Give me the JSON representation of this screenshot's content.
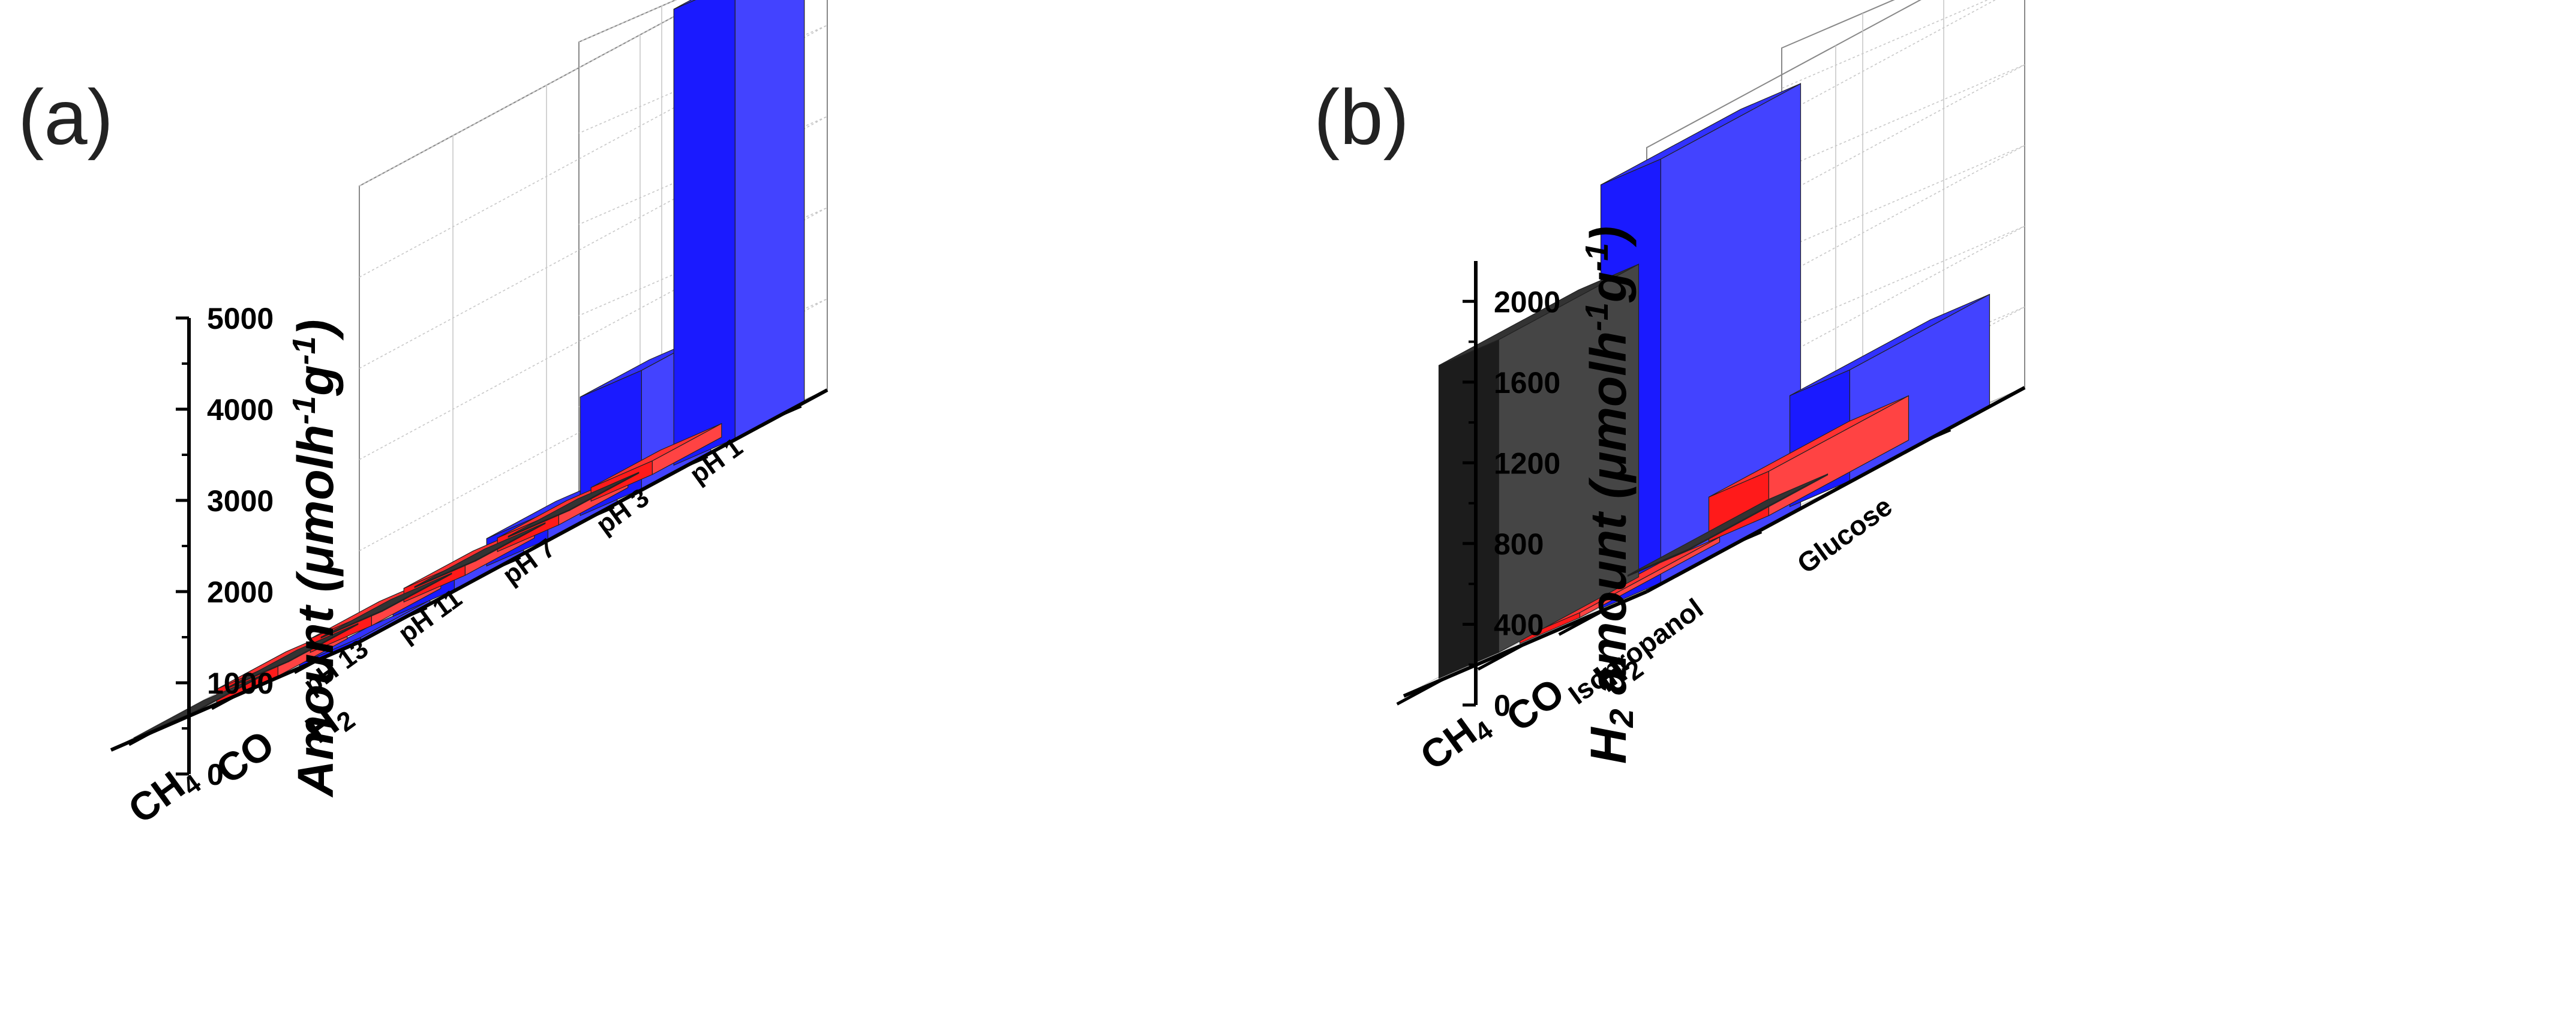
{
  "colors": {
    "H2": "#1a1aff",
    "CO": "#ff1a1a",
    "CH4": "#1c1c1c",
    "grid": "#c8c8c8",
    "axis": "#000000"
  },
  "chart_data": [
    {
      "panel": "(a)",
      "type": "bar3d",
      "ylabel": "Amount (μmolh⁻¹g⁻¹)",
      "ylabel_main": "Amount (",
      "ylabel_mu": "μ",
      "ylabel_unit1": "molh",
      "ylabel_exp1": "-1",
      "ylabel_unit2": "g",
      "ylabel_exp2": "-1",
      "ylabel_close": ")",
      "ylim": [
        0,
        5000
      ],
      "yticks": [
        0,
        1000,
        2000,
        3000,
        4000,
        5000
      ],
      "categories": [
        "pH 1",
        "pH 3",
        "pH 7",
        "pH 11",
        "pH 13"
      ],
      "products": [
        "CH4",
        "CO",
        "H2"
      ],
      "product_labels": {
        "CH4": {
          "main": "CH",
          "sub": "4"
        },
        "CO": {
          "main": "CO",
          "sub": ""
        },
        "H2": {
          "main": "H",
          "sub": "2"
        }
      },
      "series": [
        {
          "name": "CH4",
          "values": [
            10,
            10,
            10,
            10,
            10
          ]
        },
        {
          "name": "CO",
          "values": [
            150,
            150,
            150,
            150,
            150
          ]
        },
        {
          "name": "H2",
          "values": [
            5000,
            1300,
            300,
            180,
            30
          ]
        }
      ]
    },
    {
      "panel": "(b)",
      "type": "bar3d",
      "ylabel": "H2 amount (μmolh⁻¹g⁻¹)",
      "ylabel_main": "H",
      "ylabel_main_sub": "2",
      "ylabel_main_rest": " amount (",
      "ylabel_mu": "μ",
      "ylabel_unit1": "molh",
      "ylabel_exp1": "-1",
      "ylabel_unit2": "g",
      "ylabel_exp2": "-1",
      "ylabel_close": ")",
      "ylim": [
        0,
        2200
      ],
      "yticks": [
        0,
        400,
        800,
        1200,
        1600,
        2000
      ],
      "categories": [
        "Glucose",
        "Isopropanol"
      ],
      "products": [
        "CH4",
        "CO",
        "H2"
      ],
      "product_labels": {
        "CH4": {
          "main": "CH",
          "sub": "4"
        },
        "CO": {
          "main": "CO",
          "sub": ""
        },
        "H2": {
          "main": "H",
          "sub": "2"
        }
      },
      "series": [
        {
          "name": "CH4",
          "values": [
            5,
            1550
          ]
        },
        {
          "name": "CO",
          "values": [
            220,
            25
          ]
        },
        {
          "name": "H2",
          "values": [
            550,
            2100
          ]
        }
      ]
    }
  ]
}
